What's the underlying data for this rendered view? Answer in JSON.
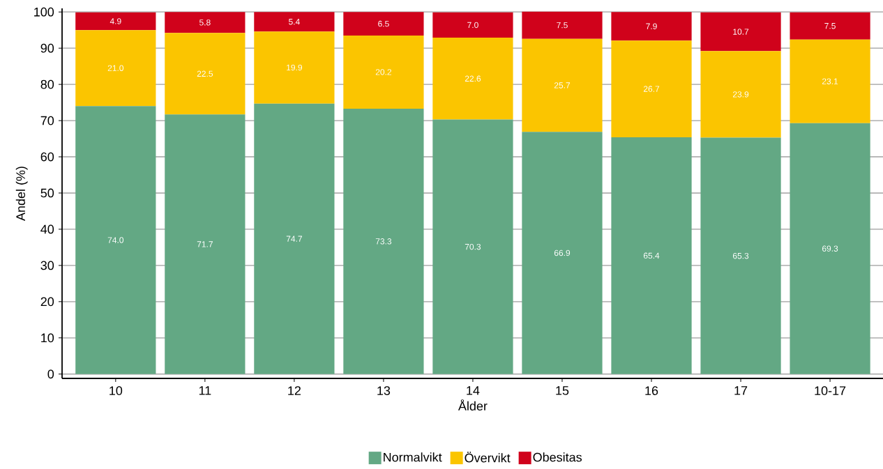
{
  "chart_data": {
    "type": "bar",
    "stacked": true,
    "xlabel": "Ålder",
    "ylabel": "Andel (%)",
    "categories": [
      "10",
      "11",
      "12",
      "13",
      "14",
      "15",
      "16",
      "17",
      "10-17"
    ],
    "series": [
      {
        "name": "Normalvikt",
        "color": "#63a884",
        "values": [
          74.0,
          71.7,
          74.7,
          73.3,
          70.3,
          66.9,
          65.4,
          65.3,
          69.3
        ],
        "value_labels": [
          "74.0",
          "71.7",
          "74.7",
          "73.3",
          "70.3",
          "66.9",
          "65.4",
          "65.3",
          "69.3"
        ]
      },
      {
        "name": "Övervikt",
        "color": "#fbc500",
        "values": [
          21.0,
          22.5,
          19.9,
          20.2,
          22.6,
          25.7,
          26.7,
          23.9,
          23.1
        ],
        "value_labels": [
          "21.0",
          "22.5",
          "19.9",
          "20.2",
          "22.6",
          "25.7",
          "26.7",
          "23.9",
          "23.1"
        ]
      },
      {
        "name": "Obesitas",
        "color": "#d0021b",
        "values": [
          4.9,
          5.8,
          5.4,
          6.5,
          7.0,
          7.5,
          7.9,
          10.7,
          7.5
        ],
        "value_labels": [
          "4.9",
          "5.8",
          "5.4",
          "6.5",
          "7.0",
          "7.5",
          "7.9",
          "10.7",
          "7.5"
        ]
      }
    ],
    "ylim": [
      -1.2,
      101
    ],
    "yticks": [
      0,
      10,
      20,
      30,
      40,
      50,
      60,
      70,
      80,
      90,
      100
    ],
    "grid": "y",
    "legend": "bottom"
  }
}
